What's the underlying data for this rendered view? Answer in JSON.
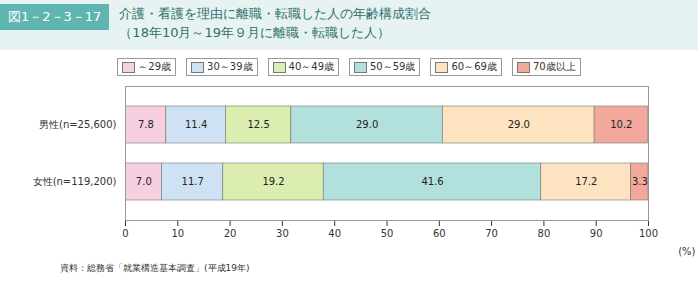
{
  "chart_data": {
    "type": "bar",
    "figure_label": "図1－2－3－17",
    "title": "介護・看護を理由に離職・転職した人の年齢構成割合",
    "subtitle": "（18年10月～19年９月に離職・転職した人）",
    "source": "資料：総務省「就業構造基本調査」(平成19年)",
    "orientation": "horizontal",
    "stacked": true,
    "data_labels": true,
    "grid": false,
    "legend": "top",
    "x_label": "(%)",
    "categories": [
      "男性(n=25,600)",
      "女性(n=119,200)"
    ],
    "xlim": [
      0,
      100
    ],
    "xticks": [
      0,
      10,
      20,
      30,
      40,
      50,
      60,
      70,
      80,
      90,
      100
    ],
    "series": [
      {
        "name": "～29歳",
        "color": "#f6cfe0",
        "values": [
          7.8,
          7.0
        ],
        "value_labels": [
          "7.8",
          "7.0"
        ]
      },
      {
        "name": "30～39歳",
        "color": "#cfe2f3",
        "values": [
          11.4,
          11.7
        ],
        "value_labels": [
          "11.4",
          "11.7"
        ]
      },
      {
        "name": "40～49歳",
        "color": "#dcedb0",
        "values": [
          12.5,
          19.2
        ],
        "value_labels": [
          "12.5",
          "19.2"
        ]
      },
      {
        "name": "50～59歳",
        "color": "#b2e0dc",
        "values": [
          29.0,
          41.6
        ],
        "value_labels": [
          "29.0",
          "41.6"
        ]
      },
      {
        "name": "60～69歳",
        "color": "#fde3bf",
        "values": [
          29.0,
          17.2
        ],
        "value_labels": [
          "29.0",
          "17.2"
        ]
      },
      {
        "name": "70歳以上",
        "color": "#f2a99b",
        "values": [
          10.2,
          3.3
        ],
        "value_labels": [
          "10.2",
          "3.3"
        ]
      }
    ]
  }
}
